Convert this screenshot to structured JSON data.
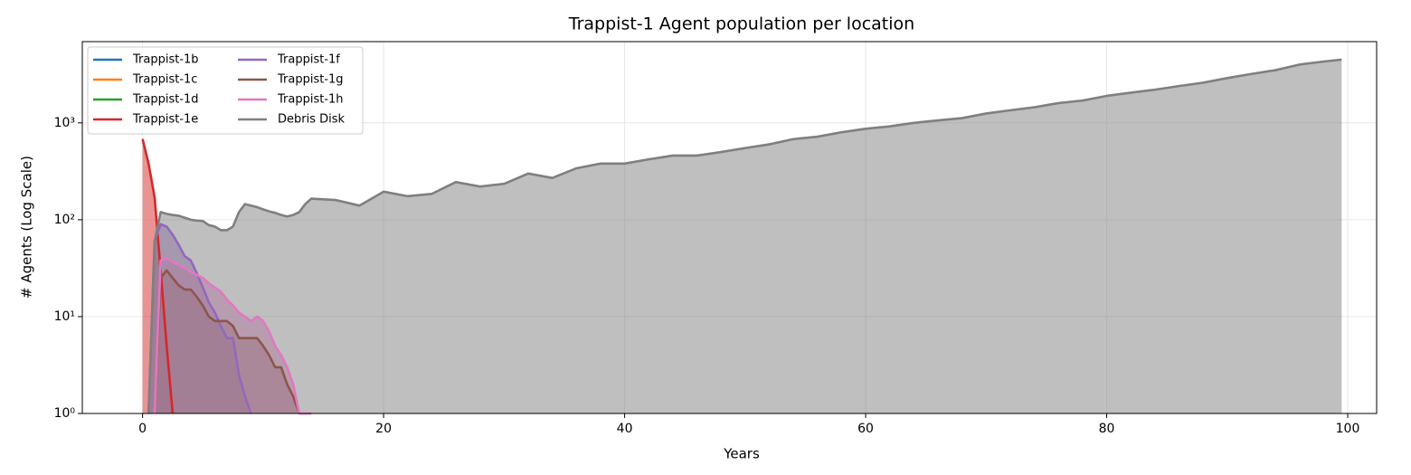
{
  "chart_data": {
    "type": "area-line",
    "title": "Trappist-1 Agent population per location",
    "x_label": "Years",
    "y_label": "# Agents (Log Scale)",
    "yscale": "log",
    "grid": true,
    "legend": "upper left",
    "xlim": [
      -5,
      102.4
    ],
    "ylim": [
      1,
      6900
    ],
    "xticks": [
      0,
      20,
      40,
      60,
      80,
      100
    ],
    "yticks": [
      {
        "value": 1,
        "label": "10⁰"
      },
      {
        "value": 10,
        "label": "10¹"
      },
      {
        "value": 100,
        "label": "10²"
      },
      {
        "value": 1000,
        "label": "10³"
      }
    ],
    "x": [
      0,
      0.5,
      1,
      1.5,
      2,
      2.5,
      3,
      3.5,
      4,
      4.5,
      5,
      5.5,
      6,
      6.5,
      7,
      7.5,
      8,
      8.5,
      9,
      9.5,
      10,
      10.5,
      11,
      11.5,
      12,
      12.5,
      13,
      13.5,
      14,
      16,
      18,
      20,
      22,
      24,
      26,
      28,
      30,
      32,
      34,
      36,
      38,
      40,
      42,
      44,
      46,
      48,
      50,
      52,
      54,
      56,
      58,
      60,
      62,
      64,
      66,
      68,
      70,
      72,
      74,
      76,
      78,
      80,
      82,
      84,
      86,
      88,
      90,
      92,
      94,
      96,
      98,
      99.5
    ],
    "series": [
      {
        "name": "Trappist-1b",
        "color": "#1f77b4",
        "values": [
          null,
          null,
          null,
          null,
          null,
          null,
          null,
          null,
          null,
          null,
          null,
          null,
          null,
          null,
          null,
          null,
          null,
          null,
          null,
          null,
          null,
          null,
          null,
          null,
          null,
          null,
          null,
          null,
          null,
          null,
          null,
          null,
          null,
          null,
          null,
          null,
          null,
          null,
          null,
          null,
          null,
          null,
          null,
          null,
          null,
          null,
          null,
          null,
          null,
          null,
          null,
          null,
          null,
          null,
          null,
          null,
          null,
          null,
          null,
          null,
          null,
          null,
          null,
          null,
          null,
          null,
          null,
          null,
          null,
          null,
          null,
          null
        ]
      },
      {
        "name": "Trappist-1c",
        "color": "#ff7f0e",
        "values": [
          null,
          null,
          null,
          null,
          null,
          null,
          null,
          null,
          null,
          null,
          null,
          null,
          null,
          null,
          null,
          null,
          null,
          null,
          null,
          null,
          null,
          null,
          null,
          null,
          null,
          null,
          null,
          null,
          null,
          null,
          null,
          null,
          null,
          null,
          null,
          null,
          null,
          null,
          null,
          null,
          null,
          null,
          null,
          null,
          null,
          null,
          null,
          null,
          null,
          null,
          null,
          null,
          null,
          null,
          null,
          null,
          null,
          null,
          null,
          null,
          null,
          null,
          null,
          null,
          null,
          null,
          null,
          null,
          null,
          null,
          null,
          null
        ]
      },
      {
        "name": "Trappist-1d",
        "color": "#2ca02c",
        "values": [
          null,
          null,
          null,
          null,
          null,
          null,
          null,
          null,
          null,
          null,
          null,
          null,
          null,
          null,
          null,
          null,
          null,
          null,
          null,
          null,
          null,
          null,
          null,
          null,
          null,
          null,
          null,
          null,
          null,
          null,
          null,
          null,
          null,
          null,
          null,
          null,
          null,
          null,
          null,
          null,
          null,
          null,
          null,
          null,
          null,
          null,
          null,
          null,
          null,
          null,
          null,
          null,
          null,
          null,
          null,
          null,
          null,
          null,
          null,
          null,
          null,
          null,
          null,
          null,
          null,
          null,
          null,
          null,
          null,
          null,
          null,
          null
        ]
      },
      {
        "name": "Trappist-1e",
        "color": "#d62728",
        "values": [
          680,
          380,
          170,
          30,
          5,
          1,
          null,
          null,
          null,
          null,
          null,
          null,
          null,
          null,
          null,
          null,
          null,
          null,
          null,
          null,
          null,
          null,
          null,
          null,
          null,
          null,
          null,
          null,
          null,
          null,
          null,
          null,
          null,
          null,
          null,
          null,
          null,
          null,
          null,
          null,
          null,
          null,
          null,
          null,
          null,
          null,
          null,
          null,
          null,
          null,
          null,
          null,
          null,
          null,
          null,
          null,
          null,
          null,
          null,
          null,
          null,
          null,
          null,
          null,
          null,
          null,
          null,
          null,
          null,
          null,
          null,
          null
        ]
      },
      {
        "name": "Trappist-1f",
        "color": "#9467bd",
        "values": [
          null,
          1,
          60,
          90,
          85,
          70,
          55,
          42,
          38,
          28,
          20,
          14,
          11,
          8,
          6,
          6,
          2.5,
          1.5,
          1,
          null,
          null,
          null,
          null,
          null,
          null,
          null,
          null,
          null,
          null,
          null,
          null,
          null,
          null,
          null,
          null,
          null,
          null,
          null,
          null,
          null,
          null,
          null,
          null,
          null,
          null,
          null,
          null,
          null,
          null,
          null,
          null,
          null,
          null,
          null,
          null,
          null,
          null,
          null,
          null,
          null,
          null,
          null,
          null,
          null,
          null,
          null,
          null,
          null,
          null,
          null,
          null,
          null
        ]
      },
      {
        "name": "Trappist-1g",
        "color": "#8c564b",
        "values": [
          null,
          null,
          1,
          25,
          30,
          25,
          21,
          19,
          19,
          16,
          13,
          10,
          9,
          9,
          9,
          8,
          6,
          6,
          6,
          6,
          5,
          4,
          3,
          3,
          2,
          1.5,
          1,
          null,
          null,
          null,
          null,
          null,
          null,
          null,
          null,
          null,
          null,
          null,
          null,
          null,
          null,
          null,
          null,
          null,
          null,
          null,
          null,
          null,
          null,
          null,
          null,
          null,
          null,
          null,
          null,
          null,
          null,
          null,
          null,
          null,
          null,
          null,
          null,
          null,
          null,
          null,
          null,
          null,
          null,
          null,
          null,
          null
        ]
      },
      {
        "name": "Trappist-1h",
        "color": "#e377c2",
        "values": [
          null,
          null,
          1,
          38,
          40,
          37,
          34,
          32,
          29,
          27,
          25,
          22,
          20,
          18,
          15,
          13,
          11,
          10,
          9,
          10,
          9,
          7,
          5,
          4,
          3,
          2,
          1,
          1,
          1,
          null,
          null,
          null,
          null,
          null,
          null,
          null,
          null,
          null,
          null,
          null,
          null,
          null,
          null,
          null,
          null,
          null,
          null,
          null,
          null,
          null,
          null,
          null,
          null,
          null,
          null,
          null,
          null,
          null,
          null,
          null,
          null,
          null,
          null,
          null,
          null,
          null,
          null,
          null,
          null,
          null,
          null,
          null
        ]
      },
      {
        "name": "Debris Disk",
        "color": "#7f7f7f",
        "values": [
          null,
          1,
          60,
          120,
          115,
          112,
          110,
          105,
          100,
          98,
          97,
          88,
          85,
          78,
          78,
          85,
          120,
          145,
          140,
          135,
          128,
          122,
          118,
          112,
          108,
          112,
          120,
          145,
          165,
          160,
          140,
          195,
          175,
          185,
          245,
          220,
          235,
          300,
          270,
          340,
          380,
          380,
          420,
          460,
          460,
          500,
          550,
          600,
          680,
          720,
          800,
          870,
          920,
          1000,
          1060,
          1120,
          1250,
          1350,
          1450,
          1600,
          1700,
          1900,
          2050,
          2200,
          2400,
          2600,
          2900,
          3200,
          3500,
          4000,
          4300,
          4500
        ]
      }
    ]
  }
}
